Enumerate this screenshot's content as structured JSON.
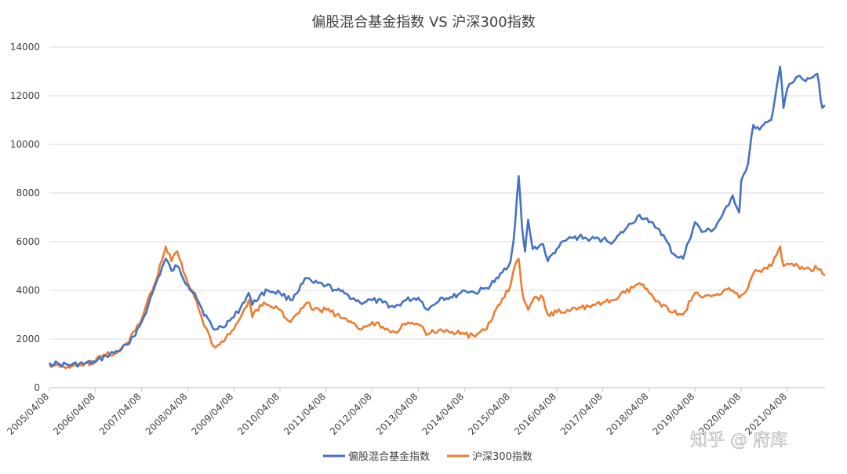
{
  "chart_data": {
    "type": "line",
    "title": "偏股混合基金指数 VS 沪深300指数",
    "xlabel": "",
    "ylabel": "",
    "ylim": [
      0,
      14000
    ],
    "yticks": [
      0,
      2000,
      4000,
      6000,
      8000,
      10000,
      12000,
      14000
    ],
    "xticks": [
      "2005/04/08",
      "2006/04/08",
      "2007/04/08",
      "2008/04/08",
      "2009/04/08",
      "2010/04/08",
      "2011/04/08",
      "2012/04/08",
      "2013/04/08",
      "2014/04/08",
      "2015/04/08",
      "2016/04/08",
      "2017/04/08",
      "2018/04/08",
      "2019/04/08",
      "2020/04/08",
      "2021/04/08"
    ],
    "grid": true,
    "legend_position": "bottom",
    "colors": {
      "series1": "#4472C4",
      "series2": "#ED7D31",
      "grid": "#d9d9d9",
      "axis": "#bfbfbf"
    },
    "series": [
      {
        "name": "偏股混合基金指数",
        "x": [
          "2005/04/08",
          "2005/07/01",
          "2005/10/01",
          "2006/01/01",
          "2006/04/08",
          "2006/07/01",
          "2006/10/01",
          "2007/01/01",
          "2007/02/01",
          "2007/04/08",
          "2007/06/01",
          "2007/08/01",
          "2007/10/16",
          "2007/12/01",
          "2008/01/15",
          "2008/04/08",
          "2008/06/01",
          "2008/08/01",
          "2008/10/28",
          "2009/01/01",
          "2009/04/08",
          "2009/06/01",
          "2009/08/04",
          "2009/09/01",
          "2009/11/01",
          "2010/01/01",
          "2010/04/08",
          "2010/07/01",
          "2010/11/08",
          "2011/01/01",
          "2011/04/08",
          "2011/07/01",
          "2011/10/01",
          "2012/01/01",
          "2012/04/08",
          "2012/07/01",
          "2012/10/01",
          "2013/01/01",
          "2013/04/08",
          "2013/06/25",
          "2013/10/01",
          "2014/01/01",
          "2014/04/08",
          "2014/07/01",
          "2014/10/01",
          "2015/01/01",
          "2015/04/08",
          "2015/05/01",
          "2015/06/12",
          "2015/07/08",
          "2015/08/01",
          "2015/08/26",
          "2015/10/01",
          "2015/12/22",
          "2016/01/28",
          "2016/04/08",
          "2016/07/01",
          "2016/10/01",
          "2017/01/01",
          "2017/04/08",
          "2017/07/01",
          "2017/10/01",
          "2018/01/24",
          "2018/04/08",
          "2018/07/01",
          "2018/10/18",
          "2019/01/03",
          "2019/04/08",
          "2019/06/01",
          "2019/09/01",
          "2020/01/01",
          "2020/02/01",
          "2020/03/23",
          "2020/04/08",
          "2020/06/01",
          "2020/07/13",
          "2020/09/01",
          "2020/12/01",
          "2021/02/10",
          "2021/03/09",
          "2021/04/08",
          "2021/06/01",
          "2021/07/01",
          "2021/09/01",
          "2021/10/01",
          "2021/12/01",
          "2022/01/10",
          "2022/02/01"
        ],
        "values": [
          1020,
          960,
          940,
          980,
          1050,
          1300,
          1500,
          1800,
          2100,
          2700,
          3400,
          4300,
          5300,
          4800,
          5000,
          4200,
          3900,
          3200,
          2400,
          2500,
          2900,
          3300,
          3900,
          3400,
          3800,
          4000,
          3900,
          3600,
          4500,
          4300,
          4200,
          4000,
          3800,
          3500,
          3600,
          3500,
          3300,
          3600,
          3700,
          3200,
          3700,
          3700,
          4000,
          3900,
          4100,
          4500,
          5200,
          6000,
          8700,
          6600,
          5600,
          6900,
          5700,
          5900,
          5200,
          5700,
          6100,
          6200,
          6100,
          6100,
          6000,
          6500,
          7100,
          6800,
          6500,
          5500,
          5300,
          6800,
          6400,
          6500,
          7500,
          7900,
          7200,
          8500,
          9200,
          10800,
          10600,
          11000,
          13200,
          11500,
          12300,
          12600,
          12800,
          12600,
          12700,
          12900,
          11500,
          11600
        ]
      },
      {
        "name": "沪深300指数",
        "x": [
          "2005/04/08",
          "2005/07/01",
          "2005/10/01",
          "2006/01/01",
          "2006/04/08",
          "2006/07/01",
          "2006/10/01",
          "2007/01/01",
          "2007/02/01",
          "2007/04/08",
          "2007/06/01",
          "2007/08/01",
          "2007/10/16",
          "2007/12/01",
          "2008/01/15",
          "2008/04/08",
          "2008/06/01",
          "2008/08/01",
          "2008/10/28",
          "2009/01/01",
          "2009/04/08",
          "2009/06/01",
          "2009/08/04",
          "2009/09/01",
          "2009/11/01",
          "2010/01/01",
          "2010/04/08",
          "2010/07/01",
          "2010/11/08",
          "2011/01/01",
          "2011/04/08",
          "2011/07/01",
          "2011/10/01",
          "2012/01/01",
          "2012/04/08",
          "2012/07/01",
          "2012/10/01",
          "2013/01/01",
          "2013/04/08",
          "2013/06/25",
          "2013/10/01",
          "2014/01/01",
          "2014/04/08",
          "2014/07/01",
          "2014/10/01",
          "2015/01/01",
          "2015/04/08",
          "2015/05/01",
          "2015/06/12",
          "2015/07/08",
          "2015/08/01",
          "2015/08/26",
          "2015/10/01",
          "2015/12/22",
          "2016/01/28",
          "2016/04/08",
          "2016/07/01",
          "2016/10/01",
          "2017/01/01",
          "2017/04/08",
          "2017/07/01",
          "2017/10/01",
          "2018/01/24",
          "2018/04/08",
          "2018/07/01",
          "2018/10/18",
          "2019/01/03",
          "2019/04/08",
          "2019/06/01",
          "2019/09/01",
          "2020/01/01",
          "2020/02/01",
          "2020/03/23",
          "2020/04/08",
          "2020/06/01",
          "2020/07/13",
          "2020/09/01",
          "2020/12/01",
          "2021/02/10",
          "2021/03/09",
          "2021/04/08",
          "2021/06/01",
          "2021/07/01",
          "2021/09/01",
          "2021/10/01",
          "2021/12/01",
          "2022/01/10",
          "2022/02/01"
        ],
        "values": [
          960,
          860,
          880,
          900,
          1100,
          1350,
          1450,
          1900,
          2300,
          2800,
          3700,
          4400,
          5800,
          5200,
          5600,
          4300,
          3700,
          2800,
          1700,
          1900,
          2400,
          2900,
          3600,
          2900,
          3400,
          3400,
          3200,
          2700,
          3500,
          3200,
          3200,
          3000,
          2700,
          2400,
          2700,
          2500,
          2300,
          2600,
          2600,
          2200,
          2400,
          2300,
          2200,
          2100,
          2400,
          3400,
          4200,
          4800,
          5300,
          4000,
          3500,
          3200,
          3600,
          3700,
          3000,
          3100,
          3200,
          3300,
          3300,
          3500,
          3600,
          3900,
          4300,
          3900,
          3500,
          3100,
          3000,
          3900,
          3700,
          3800,
          4100,
          4000,
          3700,
          3800,
          4100,
          4700,
          4800,
          5000,
          5800,
          5000,
          5100,
          5000,
          5000,
          4900,
          4900,
          4900,
          4700,
          4600
        ]
      }
    ]
  },
  "watermark": {
    "text": "知乎 @ 府库",
    "icon": "zhihu-logo"
  }
}
